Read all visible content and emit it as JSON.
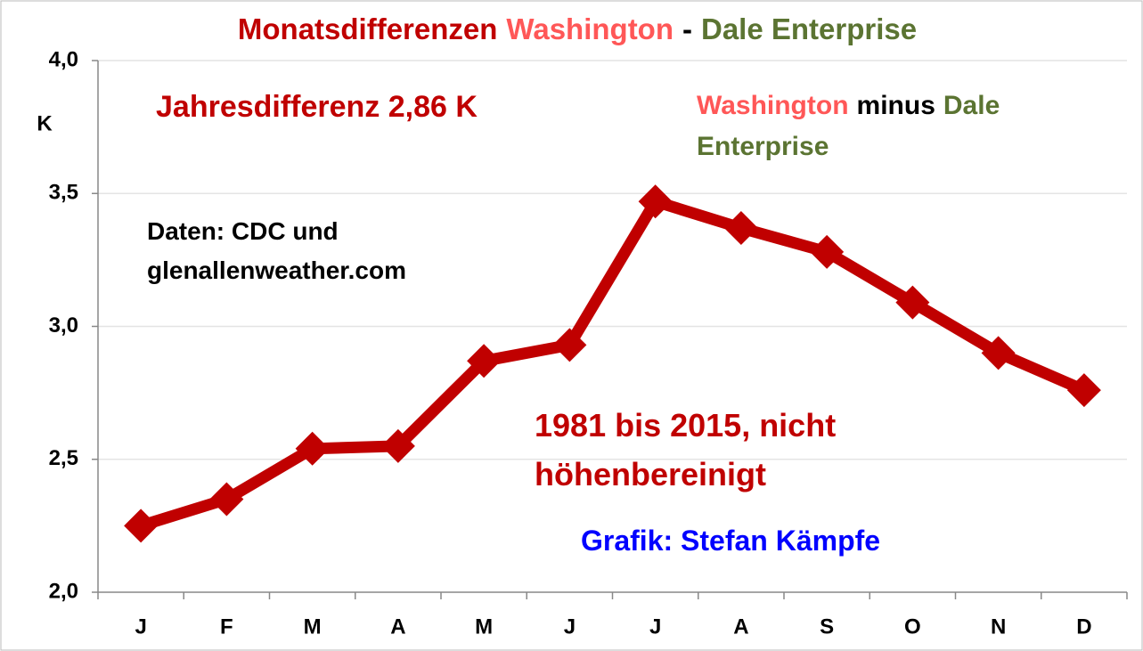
{
  "chart_data": {
    "type": "line",
    "title_parts": [
      {
        "text": "Monatsdifferenzen",
        "color": "#c00000"
      },
      {
        "text": "Washington",
        "color": "#ff5757"
      },
      {
        "text": "-",
        "color": "#000000"
      },
      {
        "text": "Dale Enterprise",
        "color": "#5b7432"
      }
    ],
    "y_label": "K",
    "categories": [
      "J",
      "F",
      "M",
      "A",
      "M",
      "J",
      "J",
      "A",
      "S",
      "O",
      "N",
      "D"
    ],
    "series": [
      {
        "color": "#c00000",
        "values": [
          2.25,
          2.35,
          2.54,
          2.55,
          2.87,
          2.93,
          3.47,
          3.37,
          3.28,
          3.09,
          2.9,
          2.76
        ]
      }
    ],
    "ylim": [
      2.0,
      4.0
    ],
    "yticks": [
      {
        "value": 2.0,
        "label": "2,0"
      },
      {
        "value": 2.5,
        "label": "2,5"
      },
      {
        "value": 3.0,
        "label": "3,0"
      },
      {
        "value": 3.5,
        "label": "3,5"
      },
      {
        "value": 4.0,
        "label": "4,0"
      }
    ],
    "grid": true,
    "annotations": [
      {
        "lines": [
          [
            {
              "text": "Jahresdifferenz 2,86 K",
              "color": "#c00000"
            }
          ]
        ]
      },
      {
        "lines": [
          [
            {
              "text": "Washington",
              "color": "#ff5757"
            },
            {
              "text": "minus",
              "color": "#000000"
            },
            {
              "text": "Dale",
              "color": "#5b7432"
            }
          ],
          [
            {
              "text": "Enterprise",
              "color": "#5b7432"
            }
          ]
        ]
      },
      {
        "lines": [
          [
            {
              "text": "Daten: CDC und",
              "color": "#000000"
            }
          ],
          [
            {
              "text": "glenallenweather.com",
              "color": "#000000"
            }
          ]
        ]
      },
      {
        "lines": [
          [
            {
              "text": "1981 bis 2015, nicht",
              "color": "#c00000"
            }
          ],
          [
            {
              "text": "höhenbereinigt",
              "color": "#c00000"
            }
          ]
        ]
      },
      {
        "lines": [
          [
            {
              "text": "Grafik: Stefan Kämpfe",
              "color": "#0000ff"
            }
          ]
        ]
      }
    ]
  }
}
